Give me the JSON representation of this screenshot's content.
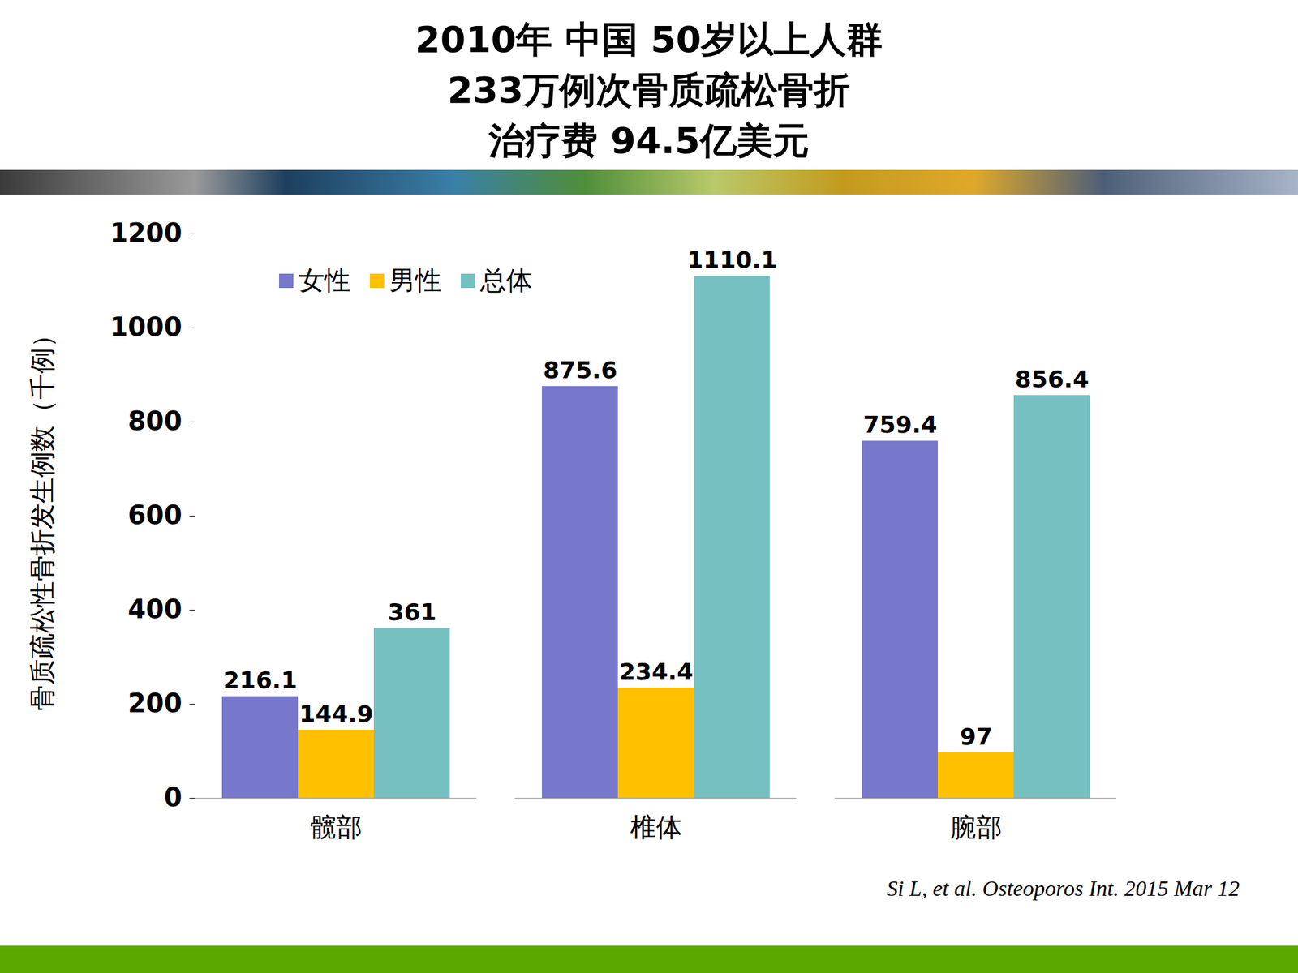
{
  "chart_data": {
    "type": "bar",
    "title": "2010年  中国  50岁以上人群\n233万例次骨质疏松骨折\n治疗费  94.5亿美元",
    "y_label": "骨质疏松性骨折发生例数（千例）",
    "categories": [
      "髋部",
      "椎体",
      "腕部"
    ],
    "series": [
      {
        "name": "女性",
        "color": "#7777cc",
        "values": [
          216.1,
          875.6,
          759.4
        ]
      },
      {
        "name": "男性",
        "color": "#ffc000",
        "values": [
          144.9,
          234.4,
          97
        ]
      },
      {
        "name": "总体",
        "color": "#76c0c1",
        "values": [
          361,
          1110.1,
          856.4
        ]
      }
    ],
    "ylim": [
      0,
      1200
    ],
    "yticks": [
      0,
      200,
      400,
      600,
      800,
      1000,
      1200
    ],
    "grid": false,
    "legend": "top-left",
    "data_labels": true,
    "source": "Si L, et al. Osteoporos Int. 2015 Mar 12"
  }
}
